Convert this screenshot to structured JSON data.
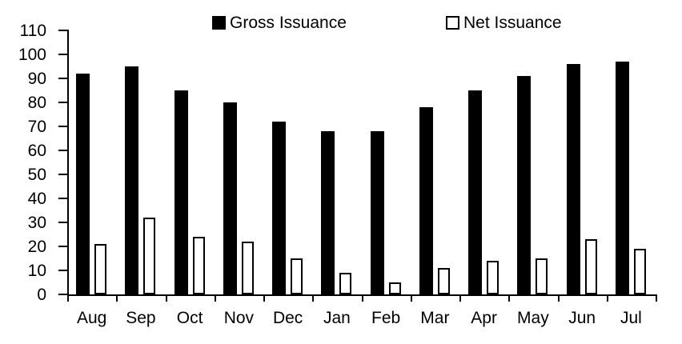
{
  "chart_data": {
    "type": "bar",
    "title": "",
    "xlabel": "",
    "ylabel": "",
    "categories": [
      "Aug",
      "Sep",
      "Oct",
      "Nov",
      "Dec",
      "Jan",
      "Feb",
      "Mar",
      "Apr",
      "May",
      "Jun",
      "Jul"
    ],
    "series": [
      {
        "name": "Gross Issuance",
        "style": "solid-black",
        "color": "#000000",
        "values": [
          92,
          95,
          85,
          80,
          72,
          68,
          68,
          78,
          85,
          91,
          96,
          97
        ]
      },
      {
        "name": "Net Issuance",
        "style": "white-outlined",
        "color": "#ffffff",
        "border_color": "#000000",
        "values": [
          21,
          32,
          24,
          22,
          15,
          9,
          5,
          11,
          14,
          15,
          23,
          19
        ]
      }
    ],
    "ylim": [
      0,
      110
    ],
    "y_ticks": [
      0,
      10,
      20,
      30,
      40,
      50,
      60,
      70,
      80,
      90,
      100,
      110
    ],
    "grid": "off",
    "legend_position": "top-center"
  }
}
